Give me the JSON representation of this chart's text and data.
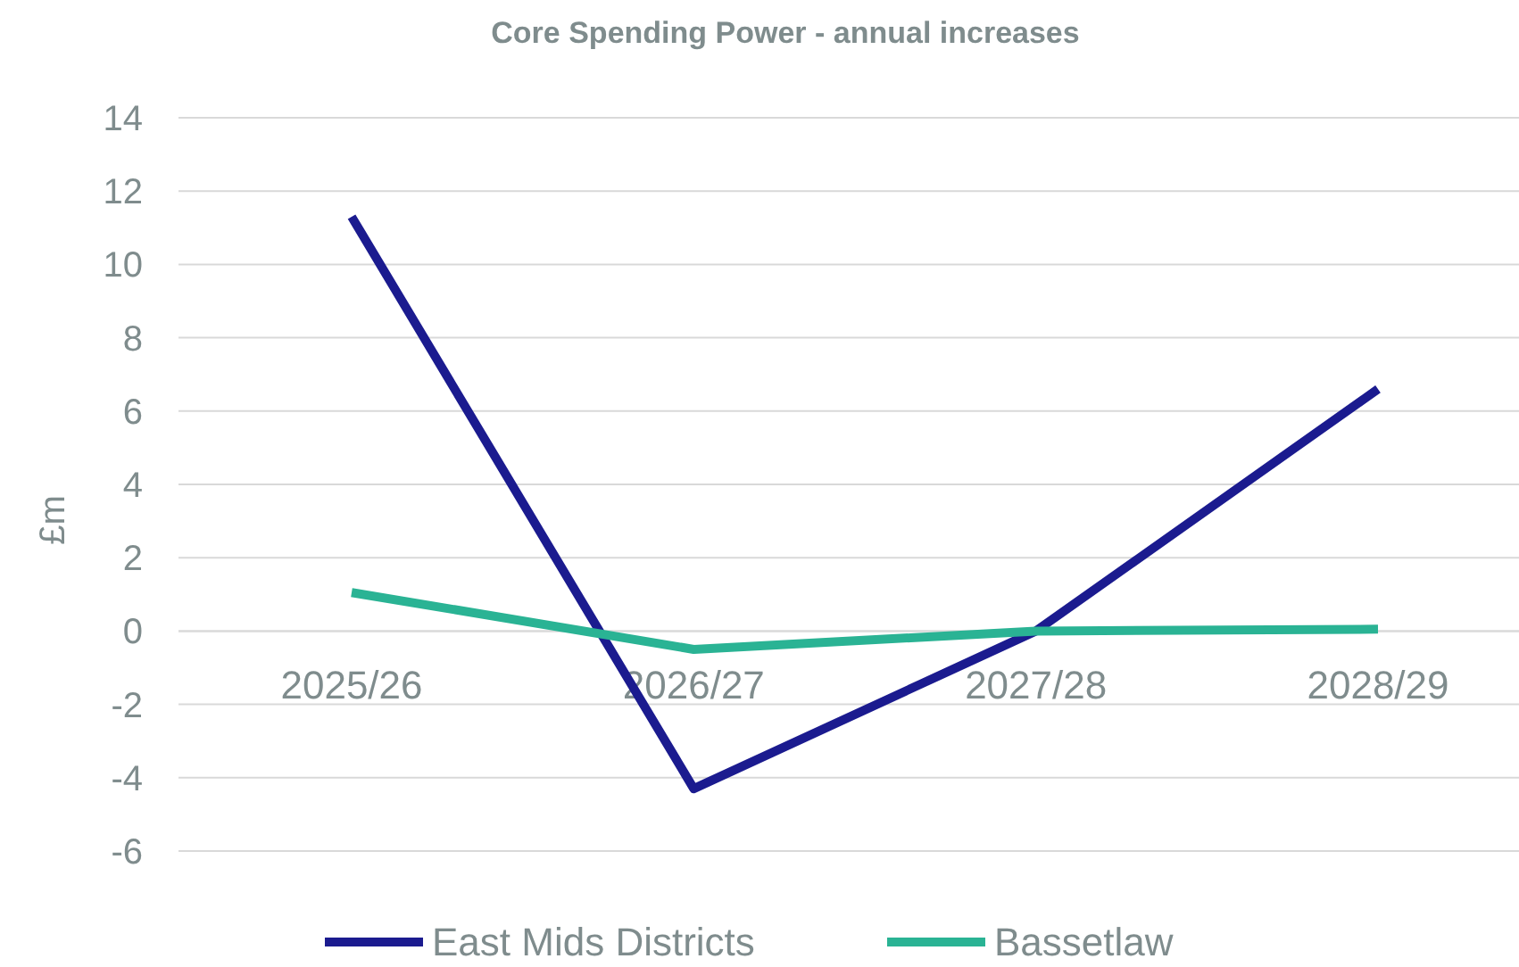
{
  "chart_data": {
    "type": "line",
    "title": "Core Spending Power -  annual increases",
    "ylabel": "£m",
    "categories": [
      "2025/26",
      "2026/27",
      "2027/28",
      "2028/29"
    ],
    "series": [
      {
        "name": "East Mids Districts",
        "color": "#1b1b8f",
        "values": [
          11.3,
          -4.3,
          0,
          6.6
        ]
      },
      {
        "name": "Bassetlaw",
        "color": "#2ab394",
        "values": [
          1.05,
          -0.5,
          0,
          0.05
        ]
      }
    ],
    "ylim": [
      -6,
      14
    ],
    "yticks": [
      -6,
      -4,
      -2,
      0,
      2,
      4,
      6,
      8,
      10,
      12,
      14
    ],
    "grid": "y",
    "legend": "bottom",
    "marker": "none",
    "line_style": "solid"
  }
}
